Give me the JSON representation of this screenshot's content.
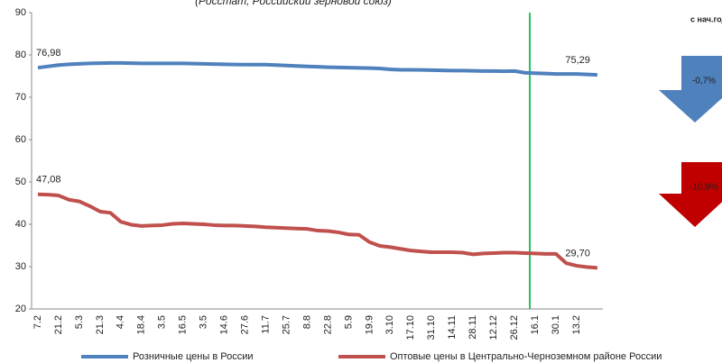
{
  "chart_data": {
    "type": "line",
    "title": "(Росстат, Российский зерновой союз)",
    "categories": [
      "7.2",
      null,
      "21.2",
      null,
      "5.3",
      null,
      "21.3",
      null,
      "4.4",
      null,
      "18.4",
      null,
      "3.5",
      null,
      "16.5",
      null,
      "3.5",
      null,
      "14.6",
      null,
      "27.6",
      null,
      "11.7",
      null,
      "25.7",
      null,
      "8.8",
      null,
      "22.8",
      null,
      "5.9",
      null,
      "19.9",
      null,
      "3.10",
      null,
      "17.10",
      null,
      "31.10",
      null,
      "14.11",
      null,
      "28.11",
      null,
      "12.12",
      null,
      "26.12",
      null,
      "16.1",
      null,
      "30.1",
      null,
      "13.2",
      null,
      null
    ],
    "series": [
      {
        "name": "Розничные цены в России",
        "color": "#4f81bd",
        "values": [
          76.98,
          77.3,
          77.6,
          77.8,
          77.9,
          78.0,
          78.05,
          78.1,
          78.1,
          78.05,
          78.0,
          78.0,
          78.0,
          78.0,
          78.0,
          77.95,
          77.9,
          77.85,
          77.8,
          77.75,
          77.7,
          77.7,
          77.7,
          77.6,
          77.5,
          77.4,
          77.3,
          77.2,
          77.1,
          77.05,
          77.0,
          76.95,
          76.9,
          76.8,
          76.6,
          76.5,
          76.5,
          76.45,
          76.4,
          76.35,
          76.3,
          76.3,
          76.25,
          76.2,
          76.2,
          76.15,
          76.2,
          75.8,
          75.7,
          75.6,
          75.5,
          75.5,
          75.5,
          75.4,
          75.29
        ],
        "value_labels": [
          "76,98",
          null,
          null,
          null,
          null,
          null,
          null,
          null,
          null,
          null,
          null,
          null,
          null,
          null,
          null,
          null,
          null,
          null,
          null,
          null,
          null,
          null,
          null,
          null,
          null,
          null,
          null,
          null,
          null,
          null,
          null,
          null,
          null,
          null,
          null,
          null,
          null,
          null,
          null,
          null,
          null,
          null,
          null,
          null,
          null,
          null,
          null,
          null,
          null,
          null,
          null,
          null,
          null,
          null,
          "75,29"
        ]
      },
      {
        "name": "Оптовые цены в Центрально-Черноземном районе России",
        "color": "#c0504d",
        "values": [
          47.08,
          47.0,
          46.8,
          45.8,
          45.4,
          44.3,
          43.0,
          42.7,
          40.6,
          39.9,
          39.6,
          39.7,
          39.8,
          40.1,
          40.2,
          40.1,
          40.0,
          39.8,
          39.7,
          39.7,
          39.6,
          39.5,
          39.3,
          39.2,
          39.1,
          39.0,
          38.9,
          38.5,
          38.4,
          38.1,
          37.6,
          37.5,
          35.8,
          34.9,
          34.6,
          34.2,
          33.8,
          33.6,
          33.4,
          33.4,
          33.4,
          33.3,
          32.9,
          33.1,
          33.2,
          33.3,
          33.3,
          33.2,
          33.1,
          33.0,
          33.0,
          30.8,
          30.2,
          29.9,
          29.7
        ],
        "value_labels": [
          "47,08",
          null,
          null,
          null,
          null,
          null,
          null,
          null,
          null,
          null,
          null,
          null,
          null,
          null,
          null,
          null,
          null,
          null,
          null,
          null,
          null,
          null,
          null,
          null,
          null,
          null,
          null,
          null,
          null,
          null,
          null,
          null,
          null,
          null,
          null,
          null,
          null,
          null,
          null,
          null,
          null,
          null,
          null,
          null,
          null,
          null,
          null,
          null,
          null,
          null,
          null,
          null,
          null,
          null,
          "29,70"
        ]
      }
    ],
    "ylim": [
      20,
      90
    ],
    "yticks": [
      20,
      30,
      40,
      50,
      60,
      70,
      80,
      90
    ],
    "grid": false
  },
  "side_panel": {
    "header": "с нач.год",
    "changes": [
      {
        "label": "-0,7%",
        "color": "#4f81bd"
      },
      {
        "label": "-10,9%",
        "color": "#c00000"
      }
    ]
  }
}
